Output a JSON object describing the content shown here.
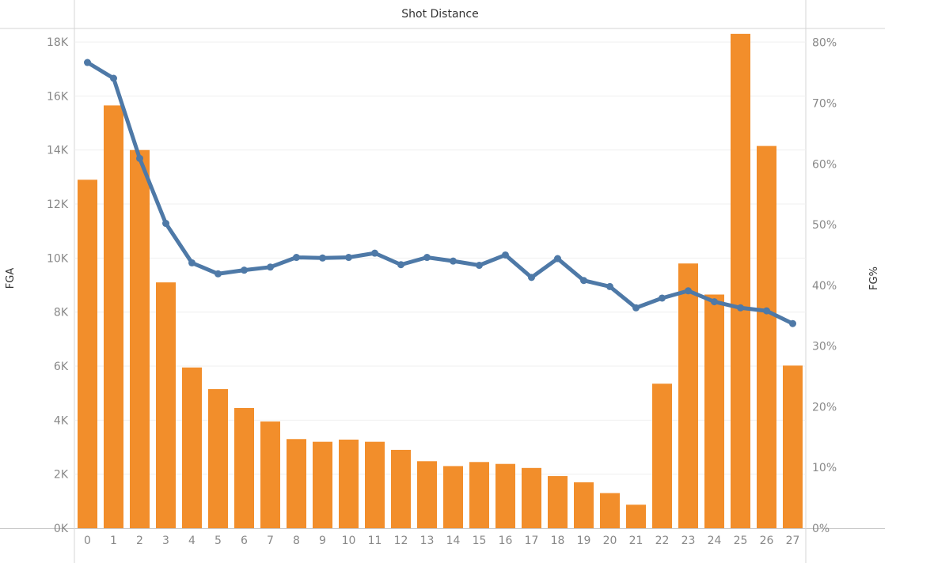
{
  "chart_data": {
    "type": "bar",
    "title": "Shot Distance",
    "categories": [
      "0",
      "1",
      "2",
      "3",
      "4",
      "5",
      "6",
      "7",
      "8",
      "9",
      "10",
      "11",
      "12",
      "13",
      "14",
      "15",
      "16",
      "17",
      "18",
      "19",
      "20",
      "21",
      "22",
      "23",
      "24",
      "25",
      "26",
      "27"
    ],
    "series": [
      {
        "name": "FGA",
        "type": "bar",
        "axis": "left",
        "color": "#F28E2B",
        "values": [
          12900,
          15650,
          14000,
          9100,
          5950,
          5150,
          4450,
          3950,
          3300,
          3200,
          3280,
          3200,
          2900,
          2480,
          2300,
          2450,
          2380,
          2230,
          1930,
          1700,
          1300,
          870,
          5350,
          9800,
          8650,
          18300,
          14150,
          6020
        ]
      },
      {
        "name": "FG%",
        "type": "line",
        "axis": "right",
        "color": "#4E79A7",
        "values": [
          76.7,
          74.1,
          60.9,
          50.2,
          43.7,
          41.9,
          42.5,
          43.0,
          44.6,
          44.5,
          44.6,
          45.3,
          43.4,
          44.6,
          44.0,
          43.3,
          45.0,
          41.3,
          44.4,
          40.8,
          39.8,
          36.3,
          37.9,
          39.1,
          37.3,
          36.3,
          35.8,
          33.7
        ]
      }
    ],
    "xlabel": "",
    "ylabel": "FGA",
    "y2label": "FG%",
    "ylim": [
      0,
      18500
    ],
    "y2lim": [
      0,
      80
    ],
    "yticks": [
      "0K",
      "2K",
      "4K",
      "6K",
      "8K",
      "10K",
      "12K",
      "14K",
      "16K",
      "18K"
    ],
    "y2ticks": [
      "0%",
      "10%",
      "20%",
      "30%",
      "40%",
      "50%",
      "60%",
      "70%",
      "80%"
    ],
    "grid": true,
    "legend": "none"
  }
}
